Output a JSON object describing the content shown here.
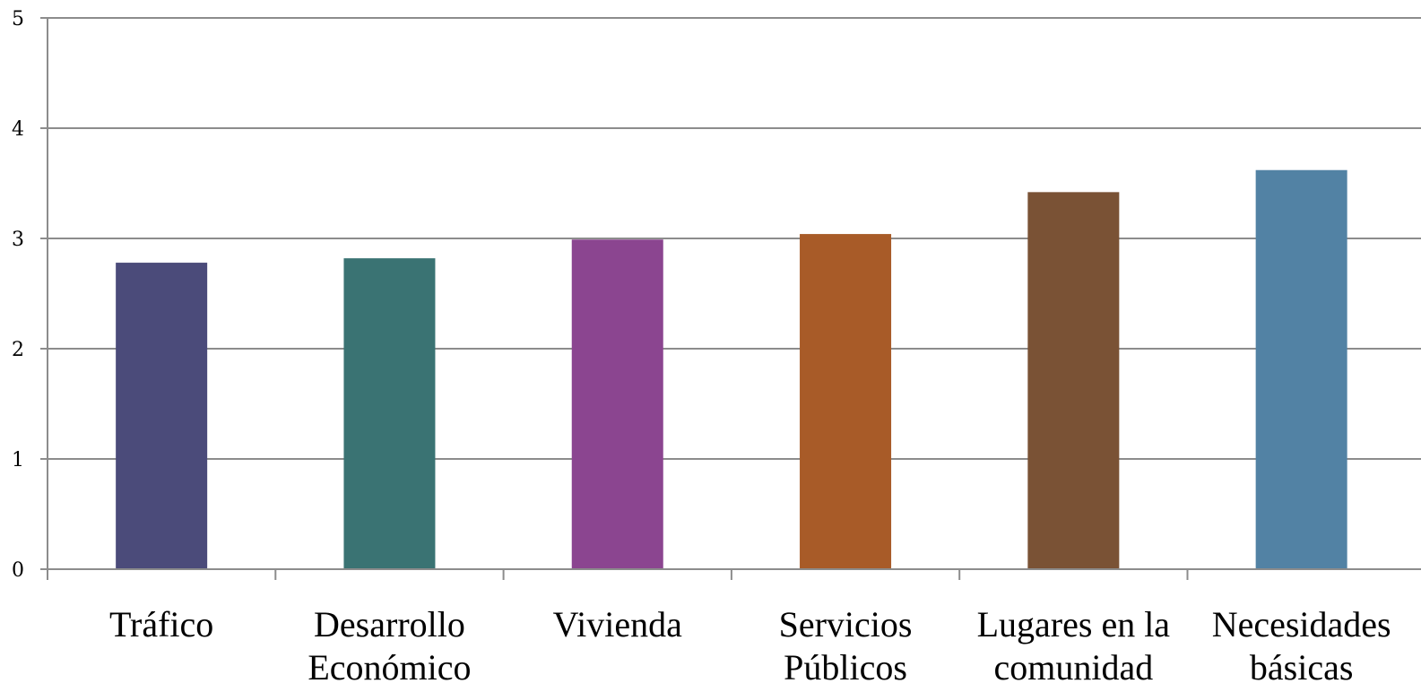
{
  "chart_data": {
    "type": "bar",
    "categories": [
      [
        "Tráfico"
      ],
      [
        "Desarrollo",
        "Económico"
      ],
      [
        "Vivienda"
      ],
      [
        "Servicios",
        "Públicos"
      ],
      [
        "Lugares en la",
        "comunidad"
      ],
      [
        "Necesidades",
        "básicas"
      ]
    ],
    "values": [
      2.78,
      2.82,
      2.99,
      3.04,
      3.42,
      3.62
    ],
    "colors": [
      "#4b4b7a",
      "#3a7373",
      "#8b4590",
      "#a85b28",
      "#7a5235",
      "#5282a4"
    ],
    "yticks": [
      "0",
      "1",
      "2",
      "3",
      "4",
      "5"
    ],
    "ylim": [
      0,
      5
    ],
    "grid": true,
    "legend": "none"
  }
}
